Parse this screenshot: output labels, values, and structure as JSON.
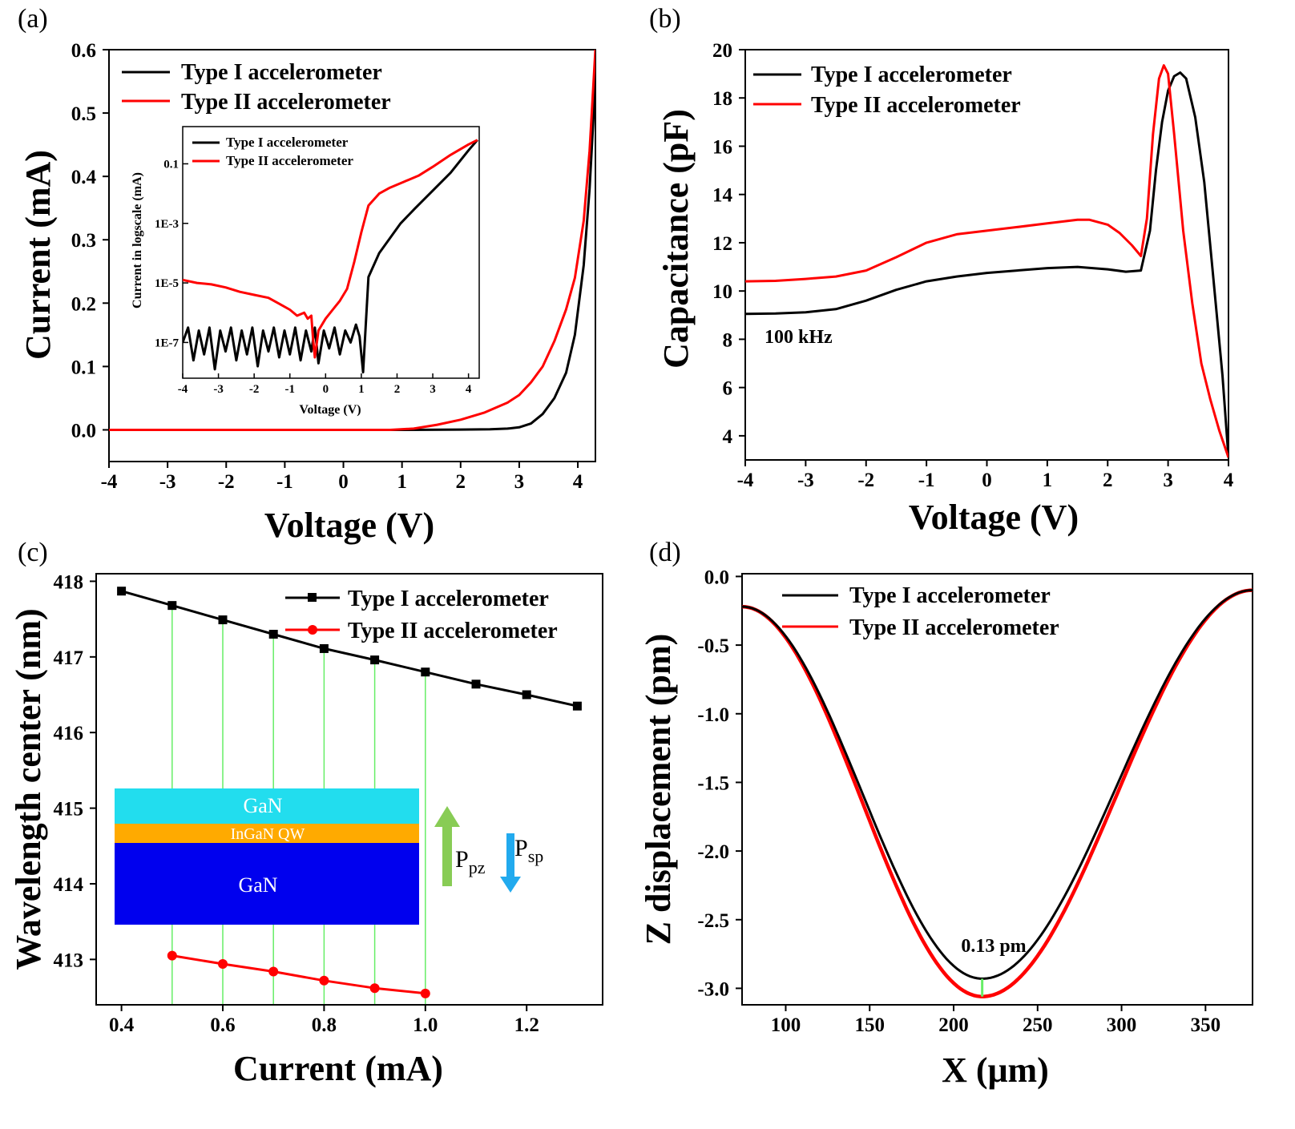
{
  "colors": {
    "type1": "#000000",
    "type2": "#ff0000",
    "guide": "#66ee66",
    "gan_top": "#22ddee",
    "ingan": "#ffaa00",
    "gan_bottom": "#0000ee",
    "ppz_arrow": "#88cc55",
    "psp_arrow": "#22aaee"
  },
  "chart_data": [
    {
      "id": "a",
      "type": "line",
      "panel_label": "(a)",
      "xlabel": "Voltage (V)",
      "ylabel": "Current (mA)",
      "xlim": [
        -4,
        4.3
      ],
      "ylim": [
        -0.05,
        0.6
      ],
      "xticks": [
        "-4",
        "-3",
        "-2",
        "-1",
        "0",
        "1",
        "2",
        "3",
        "4"
      ],
      "yticks": [
        "0.0",
        "0.1",
        "0.2",
        "0.3",
        "0.4",
        "0.5",
        "0.6"
      ],
      "legend": [
        "Type I accelerometer",
        "Type II accelerometer"
      ],
      "series": [
        {
          "name": "Type I accelerometer",
          "color_key": "type1",
          "x": [
            -4,
            1.0,
            2.0,
            2.5,
            2.8,
            3.0,
            3.2,
            3.4,
            3.6,
            3.8,
            3.95,
            4.1,
            4.2,
            4.3
          ],
          "y": [
            0,
            0,
            0.0005,
            0.001,
            0.002,
            0.004,
            0.01,
            0.025,
            0.05,
            0.09,
            0.15,
            0.26,
            0.38,
            0.55
          ]
        },
        {
          "name": "Type II accelerometer",
          "color_key": "type2",
          "x": [
            -4,
            0.8,
            1.2,
            1.6,
            2.0,
            2.4,
            2.8,
            3.0,
            3.2,
            3.4,
            3.6,
            3.8,
            3.95,
            4.1,
            4.2,
            4.3
          ],
          "y": [
            0,
            0,
            0.002,
            0.008,
            0.016,
            0.027,
            0.043,
            0.055,
            0.075,
            0.1,
            0.14,
            0.19,
            0.24,
            0.33,
            0.44,
            0.6
          ]
        }
      ],
      "inset": {
        "ylabel": "Current in logscale (mA)",
        "xlabel": "Voltage (V)",
        "xlim": [
          -4,
          4.3
        ],
        "ylog10_lim": [
          -8.2,
          0.25
        ],
        "xticks": [
          "-4",
          "-3",
          "-2",
          "-1",
          "0",
          "1",
          "2",
          "3",
          "4"
        ],
        "yticks": [
          {
            "label": "1E-7",
            "log10": -7
          },
          {
            "label": "1E-5",
            "log10": -5
          },
          {
            "label": "1E-3",
            "log10": -3
          },
          {
            "label": "0.1",
            "log10": -1
          }
        ],
        "legend": [
          "Type I accelerometer",
          "Type II accelerometer"
        ],
        "series": [
          {
            "name": "Type I accelerometer",
            "color_key": "type1",
            "x": [
              -4.0,
              -3.85,
              -3.7,
              -3.55,
              -3.4,
              -3.25,
              -3.1,
              -2.95,
              -2.8,
              -2.65,
              -2.5,
              -2.35,
              -2.2,
              -2.05,
              -1.9,
              -1.75,
              -1.6,
              -1.45,
              -1.3,
              -1.15,
              -1.0,
              -0.85,
              -0.7,
              -0.55,
              -0.4,
              -0.3,
              -0.2,
              -0.05,
              0.1,
              0.25,
              0.4,
              0.55,
              0.7,
              0.85,
              0.95,
              1.05,
              1.2,
              1.5,
              1.8,
              2.1,
              2.5,
              3.0,
              3.5,
              4.0,
              4.25
            ],
            "log10": [
              -7.0,
              -6.5,
              -7.6,
              -6.6,
              -7.4,
              -6.5,
              -7.9,
              -6.6,
              -7.3,
              -6.5,
              -7.6,
              -6.6,
              -7.4,
              -6.5,
              -7.8,
              -6.6,
              -7.3,
              -6.5,
              -7.5,
              -6.6,
              -7.4,
              -6.5,
              -7.6,
              -6.6,
              -7.3,
              -6.5,
              -7.7,
              -6.6,
              -7.2,
              -6.5,
              -7.4,
              -6.6,
              -7.0,
              -6.4,
              -6.8,
              -8.0,
              -4.8,
              -4.0,
              -3.5,
              -3.0,
              -2.5,
              -1.9,
              -1.3,
              -0.55,
              -0.2
            ]
          },
          {
            "name": "Type II accelerometer",
            "color_key": "type2",
            "x": [
              -4.0,
              -3.6,
              -3.2,
              -2.8,
              -2.4,
              -2.0,
              -1.6,
              -1.3,
              -1.0,
              -0.8,
              -0.6,
              -0.5,
              -0.4,
              -0.35,
              -0.3,
              -0.2,
              0.0,
              0.2,
              0.4,
              0.6,
              0.8,
              1.0,
              1.2,
              1.5,
              1.8,
              2.2,
              2.6,
              3.0,
              3.5,
              4.0,
              4.25
            ],
            "log10": [
              -4.9,
              -5.0,
              -5.05,
              -5.15,
              -5.3,
              -5.4,
              -5.5,
              -5.7,
              -5.9,
              -6.1,
              -6.0,
              -6.2,
              -6.1,
              -6.9,
              -7.5,
              -6.6,
              -6.2,
              -5.9,
              -5.6,
              -5.2,
              -4.3,
              -3.3,
              -2.4,
              -2.0,
              -1.8,
              -1.6,
              -1.4,
              -1.1,
              -0.7,
              -0.35,
              -0.2
            ]
          }
        ]
      }
    },
    {
      "id": "b",
      "type": "line",
      "panel_label": "(b)",
      "xlabel": "Voltage (V)",
      "ylabel": "Capacitance (pF)",
      "xlim": [
        -4,
        4
      ],
      "ylim": [
        3,
        20
      ],
      "xticks": [
        "-4",
        "-3",
        "-2",
        "-1",
        "0",
        "1",
        "2",
        "3",
        "4"
      ],
      "yticks": [
        "4",
        "6",
        "8",
        "10",
        "12",
        "14",
        "16",
        "18",
        "20"
      ],
      "legend": [
        "Type I accelerometer",
        "Type II accelerometer"
      ],
      "annotation": "100 kHz",
      "series": [
        {
          "name": "Type I accelerometer",
          "color_key": "type1",
          "x": [
            -4,
            -3.5,
            -3,
            -2.5,
            -2,
            -1.5,
            -1,
            -0.5,
            0,
            0.5,
            1,
            1.5,
            2,
            2.3,
            2.55,
            2.7,
            2.8,
            2.9,
            3.0,
            3.1,
            3.2,
            3.3,
            3.45,
            3.6,
            3.75,
            3.9,
            4.0
          ],
          "y": [
            9.05,
            9.07,
            9.12,
            9.25,
            9.6,
            10.05,
            10.4,
            10.6,
            10.75,
            10.85,
            10.95,
            11.0,
            10.9,
            10.8,
            10.85,
            12.5,
            15.0,
            17.0,
            18.3,
            18.9,
            19.05,
            18.8,
            17.2,
            14.5,
            10.5,
            6.5,
            3.1
          ]
        },
        {
          "name": "Type II accelerometer",
          "color_key": "type2",
          "x": [
            -4,
            -3.5,
            -3,
            -2.5,
            -2,
            -1.5,
            -1,
            -0.5,
            0,
            0.5,
            1,
            1.5,
            1.7,
            2.0,
            2.2,
            2.4,
            2.55,
            2.65,
            2.75,
            2.85,
            2.93,
            3.0,
            3.1,
            3.25,
            3.4,
            3.55,
            3.7,
            3.85,
            4.0
          ],
          "y": [
            10.4,
            10.42,
            10.5,
            10.6,
            10.85,
            11.4,
            12.0,
            12.35,
            12.5,
            12.65,
            12.8,
            12.95,
            12.95,
            12.75,
            12.4,
            11.9,
            11.45,
            13.0,
            16.5,
            18.8,
            19.35,
            19.0,
            16.5,
            12.5,
            9.5,
            7.0,
            5.5,
            4.2,
            3.1
          ]
        }
      ]
    },
    {
      "id": "c",
      "type": "line",
      "panel_label": "(c)",
      "xlabel": "Current (mA)",
      "ylabel": "Wavelength center (nm)",
      "xlim": [
        0.35,
        1.35
      ],
      "ylim": [
        412.4,
        418.1
      ],
      "xticks": [
        "0.4",
        "0.6",
        "0.8",
        "1.0",
        "1.2"
      ],
      "yticks": [
        "413",
        "414",
        "415",
        "416",
        "417",
        "418"
      ],
      "legend": [
        "Type I  accelerometer",
        "Type II accelerometer"
      ],
      "series": [
        {
          "name": "Type I  accelerometer",
          "color_key": "type1",
          "marker": "square",
          "x": [
            0.4,
            0.5,
            0.6,
            0.7,
            0.8,
            0.9,
            1.0,
            1.1,
            1.2,
            1.3
          ],
          "y": [
            417.87,
            417.68,
            417.49,
            417.3,
            417.11,
            416.96,
            416.8,
            416.64,
            416.5,
            416.35
          ]
        },
        {
          "name": "Type II accelerometer",
          "color_key": "type2",
          "marker": "circle",
          "x": [
            0.5,
            0.6,
            0.7,
            0.8,
            0.9,
            1.0
          ],
          "y": [
            413.05,
            412.94,
            412.84,
            412.72,
            412.62,
            412.55
          ]
        }
      ],
      "guide_lines_x": [
        0.5,
        0.6,
        0.7,
        0.8,
        0.9,
        1.0
      ],
      "inset_diagram": {
        "layers": [
          "GaN",
          "InGaN QW",
          "GaN"
        ],
        "ppz_main": "P",
        "ppz_sub": "pz",
        "psp_main": "P",
        "psp_sub": "sp"
      }
    },
    {
      "id": "d",
      "type": "line",
      "panel_label": "(d)",
      "xlabel": "X (μm)",
      "ylabel": "Z displacement (pm)",
      "xlim": [
        74,
        378
      ],
      "ylim": [
        -3.12,
        0.02
      ],
      "xticks": [
        "100",
        "150",
        "200",
        "250",
        "300",
        "350"
      ],
      "yticks": [
        "0.0",
        "-0.5",
        "-1.0",
        "-1.5",
        "-2.0",
        "-2.5",
        "-3.0"
      ],
      "legend": [
        "Type I accelerometer",
        "Type II accelerometer"
      ],
      "annotation": "0.13 pm",
      "annotation_x": 217,
      "series": [
        {
          "name": "Type I accelerometer",
          "color_key": "type1",
          "x_start": 74,
          "x_end": 378,
          "center": 217,
          "min": -2.93,
          "ends": [
            -0.22,
            -0.1
          ]
        },
        {
          "name": "Type II accelerometer",
          "color_key": "type2",
          "x_start": 74,
          "x_end": 378,
          "center": 217,
          "min": -3.06,
          "ends": [
            -0.22,
            -0.1
          ]
        }
      ]
    }
  ]
}
